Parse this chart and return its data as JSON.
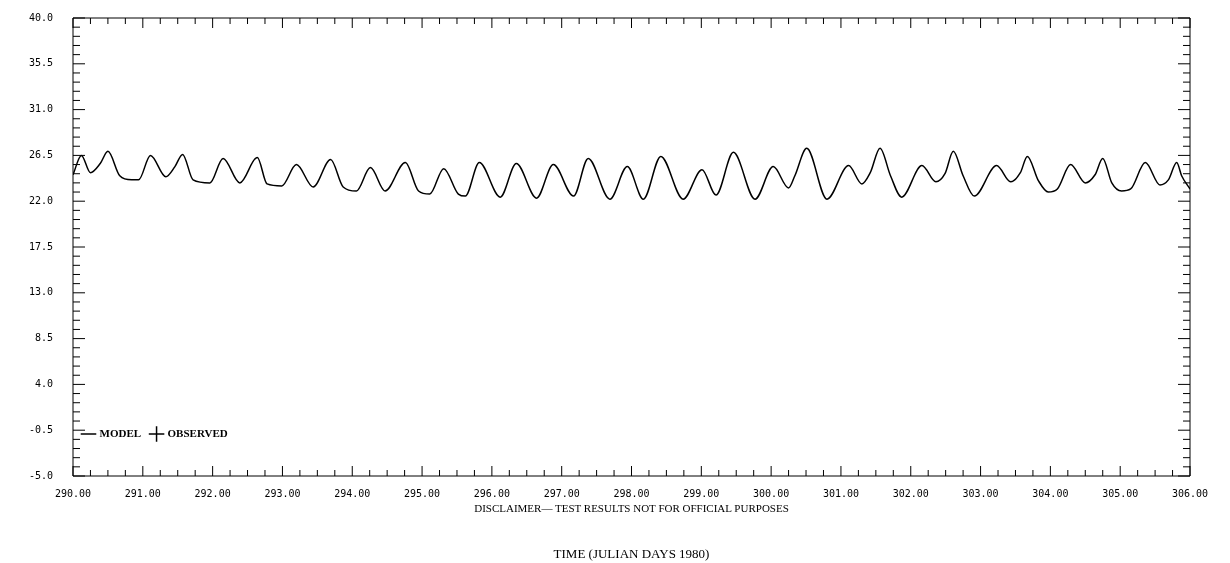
{
  "chart_data": {
    "type": "line",
    "xlabel": "TIME (JULIAN DAYS 1980)",
    "annotations": [
      "DISCLAIMER— TEST RESULTS NOT FOR OFFICIAL PURPOSES"
    ],
    "xlim": [
      290,
      306
    ],
    "xticks": [
      {
        "value": 290,
        "label": "290.00"
      },
      {
        "value": 290.25,
        "label": null
      },
      {
        "value": 290.5,
        "label": null
      },
      {
        "value": 290.75,
        "label": null
      },
      {
        "value": 291,
        "label": "291.00"
      },
      {
        "value": 291.25,
        "label": null
      },
      {
        "value": 291.5,
        "label": null
      },
      {
        "value": 291.75,
        "label": null
      },
      {
        "value": 292,
        "label": "292.00"
      },
      {
        "value": 292.25,
        "label": null
      },
      {
        "value": 292.5,
        "label": null
      },
      {
        "value": 292.75,
        "label": null
      },
      {
        "value": 293,
        "label": "293.00"
      },
      {
        "value": 293.25,
        "label": null
      },
      {
        "value": 293.5,
        "label": null
      },
      {
        "value": 293.75,
        "label": null
      },
      {
        "value": 294,
        "label": "294.00"
      },
      {
        "value": 294.25,
        "label": null
      },
      {
        "value": 294.5,
        "label": null
      },
      {
        "value": 294.75,
        "label": null
      },
      {
        "value": 295,
        "label": "295.00"
      },
      {
        "value": 295.25,
        "label": null
      },
      {
        "value": 295.5,
        "label": null
      },
      {
        "value": 295.75,
        "label": null
      },
      {
        "value": 296,
        "label": "296.00"
      },
      {
        "value": 296.25,
        "label": null
      },
      {
        "value": 296.5,
        "label": null
      },
      {
        "value": 296.75,
        "label": null
      },
      {
        "value": 297,
        "label": "297.00"
      },
      {
        "value": 297.25,
        "label": null
      },
      {
        "value": 297.5,
        "label": null
      },
      {
        "value": 297.75,
        "label": null
      },
      {
        "value": 298,
        "label": "298.00"
      },
      {
        "value": 298.25,
        "label": null
      },
      {
        "value": 298.5,
        "label": null
      },
      {
        "value": 298.75,
        "label": null
      },
      {
        "value": 299,
        "label": "299.00"
      },
      {
        "value": 299.25,
        "label": null
      },
      {
        "value": 299.5,
        "label": null
      },
      {
        "value": 299.75,
        "label": null
      },
      {
        "value": 300,
        "label": "300.00"
      },
      {
        "value": 300.25,
        "label": null
      },
      {
        "value": 300.5,
        "label": null
      },
      {
        "value": 300.75,
        "label": null
      },
      {
        "value": 301,
        "label": "301.00"
      },
      {
        "value": 301.25,
        "label": null
      },
      {
        "value": 301.5,
        "label": null
      },
      {
        "value": 301.75,
        "label": null
      },
      {
        "value": 302,
        "label": "302.00"
      },
      {
        "value": 302.25,
        "label": null
      },
      {
        "value": 302.5,
        "label": null
      },
      {
        "value": 302.75,
        "label": null
      },
      {
        "value": 303,
        "label": "303.00"
      },
      {
        "value": 303.25,
        "label": null
      },
      {
        "value": 303.5,
        "label": null
      },
      {
        "value": 303.75,
        "label": null
      },
      {
        "value": 304,
        "label": "304.00"
      },
      {
        "value": 304.25,
        "label": null
      },
      {
        "value": 304.5,
        "label": null
      },
      {
        "value": 304.75,
        "label": null
      },
      {
        "value": 305,
        "label": "305.00"
      },
      {
        "value": 305.25,
        "label": null
      },
      {
        "value": 305.5,
        "label": null
      },
      {
        "value": 305.75,
        "label": null
      },
      {
        "value": 306,
        "label": "306.00"
      }
    ],
    "ylim": [
      -5,
      40
    ],
    "yticks": [
      {
        "value": -5,
        "label": "-5.0"
      },
      {
        "value": -4.1,
        "label": null
      },
      {
        "value": -3.2,
        "label": null
      },
      {
        "value": -2.3,
        "label": null
      },
      {
        "value": -1.4,
        "label": null
      },
      {
        "value": -0.5,
        "label": "-0.5"
      },
      {
        "value": 0.4,
        "label": null
      },
      {
        "value": 1.3,
        "label": null
      },
      {
        "value": 2.2,
        "label": null
      },
      {
        "value": 3.1,
        "label": null
      },
      {
        "value": 4,
        "label": "4.0"
      },
      {
        "value": 4.9,
        "label": null
      },
      {
        "value": 5.8,
        "label": null
      },
      {
        "value": 6.7,
        "label": null
      },
      {
        "value": 7.6,
        "label": null
      },
      {
        "value": 8.5,
        "label": "8.5"
      },
      {
        "value": 9.4,
        "label": null
      },
      {
        "value": 10.3,
        "label": null
      },
      {
        "value": 11.2,
        "label": null
      },
      {
        "value": 12.1,
        "label": null
      },
      {
        "value": 13,
        "label": "13.0"
      },
      {
        "value": 13.9,
        "label": null
      },
      {
        "value": 14.8,
        "label": null
      },
      {
        "value": 15.7,
        "label": null
      },
      {
        "value": 16.6,
        "label": null
      },
      {
        "value": 17.5,
        "label": "17.5"
      },
      {
        "value": 18.4,
        "label": null
      },
      {
        "value": 19.3,
        "label": null
      },
      {
        "value": 20.2,
        "label": null
      },
      {
        "value": 21.1,
        "label": null
      },
      {
        "value": 22,
        "label": "22.0"
      },
      {
        "value": 22.9,
        "label": null
      },
      {
        "value": 23.8,
        "label": null
      },
      {
        "value": 24.7,
        "label": null
      },
      {
        "value": 25.6,
        "label": null
      },
      {
        "value": 26.5,
        "label": "26.5"
      },
      {
        "value": 27.4,
        "label": null
      },
      {
        "value": 28.3,
        "label": null
      },
      {
        "value": 29.2,
        "label": null
      },
      {
        "value": 30.1,
        "label": null
      },
      {
        "value": 31,
        "label": "31.0"
      },
      {
        "value": 31.9,
        "label": null
      },
      {
        "value": 32.8,
        "label": null
      },
      {
        "value": 33.7,
        "label": null
      },
      {
        "value": 34.6,
        "label": null
      },
      {
        "value": 35.5,
        "label": "35.5"
      },
      {
        "value": 36.4,
        "label": null
      },
      {
        "value": 37.3,
        "label": null
      },
      {
        "value": 38.2,
        "label": null
      },
      {
        "value": 39.1,
        "label": null
      },
      {
        "value": 40,
        "label": "40.0"
      }
    ],
    "legend": "bottom",
    "series": [
      {
        "name": "MODEL",
        "type": "line",
        "color": "#000000",
        "marker": "none",
        "line_style": "solid",
        "x": [
          290.0,
          290.12,
          290.25,
          290.39,
          290.5,
          290.67,
          290.84,
          290.94,
          291.11,
          291.33,
          291.46,
          291.57,
          291.72,
          291.96,
          292.15,
          292.39,
          292.64,
          292.78,
          292.99,
          293.2,
          293.44,
          293.69,
          293.87,
          294.06,
          294.26,
          294.47,
          294.76,
          294.95,
          295.11,
          295.31,
          295.52,
          295.62,
          295.82,
          296.12,
          296.35,
          296.64,
          296.88,
          297.17,
          297.38,
          297.69,
          297.94,
          298.17,
          298.42,
          298.74,
          299.01,
          299.21,
          299.46,
          299.77,
          300.03,
          300.25,
          300.34,
          300.51,
          300.8,
          301.11,
          301.3,
          301.42,
          301.56,
          301.71,
          301.87,
          302.16,
          302.36,
          302.49,
          302.61,
          302.75,
          302.91,
          303.23,
          303.43,
          303.57,
          303.67,
          303.83,
          303.97,
          304.1,
          304.29,
          304.5,
          304.64,
          304.75,
          304.88,
          305.02,
          305.15,
          305.36,
          305.57,
          305.69,
          305.81,
          305.88,
          306.0
        ],
        "values": [
          24.6,
          26.5,
          24.8,
          25.7,
          26.9,
          24.5,
          24.1,
          24.1,
          26.5,
          24.4,
          25.4,
          26.6,
          24.1,
          23.8,
          26.2,
          23.8,
          26.3,
          23.7,
          23.5,
          25.6,
          23.4,
          26.1,
          23.4,
          23.0,
          25.3,
          23.0,
          25.8,
          23.0,
          22.7,
          25.2,
          22.7,
          22.5,
          25.8,
          22.4,
          25.7,
          22.3,
          25.6,
          22.5,
          26.2,
          22.2,
          25.4,
          22.2,
          26.4,
          22.2,
          25.1,
          22.6,
          26.8,
          22.2,
          25.4,
          23.3,
          24.5,
          27.2,
          22.2,
          25.5,
          23.7,
          24.8,
          27.2,
          24.5,
          22.4,
          25.5,
          23.9,
          24.7,
          26.9,
          24.5,
          22.5,
          25.5,
          23.9,
          24.8,
          26.4,
          24.0,
          22.9,
          23.2,
          25.6,
          23.8,
          24.6,
          26.2,
          23.8,
          23.0,
          23.2,
          25.8,
          23.6,
          24.1,
          25.8,
          24.5,
          23.2
        ]
      },
      {
        "name": "OBSERVED",
        "type": "scatter",
        "color": "#000000",
        "marker": "cross"
      }
    ]
  }
}
